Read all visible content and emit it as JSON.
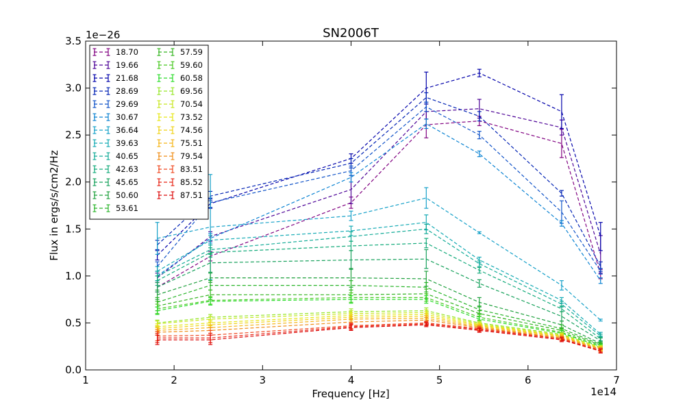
{
  "chart_data": {
    "type": "line",
    "title": "SN2006T",
    "xlabel": "Frequency [Hz]",
    "ylabel": "Flux in ergs/s/cm2/Hz",
    "x_multiplier": "1e14",
    "y_multiplier": "1e−26",
    "xlim": [
      1,
      7
    ],
    "ylim": [
      0,
      3.5
    ],
    "x_ticks": [
      "1",
      "2",
      "3",
      "4",
      "5",
      "6",
      "7"
    ],
    "y_ticks": [
      "0.0",
      "0.5",
      "1.0",
      "1.5",
      "2.0",
      "2.5",
      "3.0",
      "3.5"
    ],
    "grid": false,
    "legend_position": "top-left",
    "x": [
      1.81,
      2.41,
      4.0,
      4.85,
      5.45,
      6.38,
      6.82
    ],
    "series": [
      {
        "name": "18.70",
        "color": "#800080",
        "values": [
          0.88,
          1.21,
          1.78,
          2.61,
          2.65,
          2.41,
          1.02
        ],
        "errors": [
          0.05,
          0.05,
          0.06,
          0.14,
          0.05,
          0.15,
          0.05
        ]
      },
      {
        "name": "19.66",
        "color": "#4b0096",
        "values": [
          0.98,
          1.42,
          1.92,
          2.75,
          2.78,
          2.58,
          1.23
        ],
        "errors": [
          0.05,
          0.05,
          0.15,
          0.08,
          0.1,
          0.08,
          0.2
        ]
      },
      {
        "name": "21.68",
        "color": "#0000aa",
        "values": [
          1.22,
          1.77,
          2.25,
          3.0,
          3.16,
          2.75,
          1.42
        ],
        "errors": [
          0.05,
          0.05,
          0.05,
          0.17,
          0.04,
          0.18,
          0.15
        ]
      },
      {
        "name": "28.69",
        "color": "#0022b4",
        "values": [
          1.33,
          1.85,
          2.2,
          2.9,
          2.7,
          1.88,
          1.1
        ],
        "errors": [
          0.05,
          0.05,
          0.05,
          0.05,
          0.05,
          0.03,
          0.05
        ]
      },
      {
        "name": "29.69",
        "color": "#0f52c8",
        "values": [
          1.1,
          1.78,
          2.12,
          2.8,
          2.5,
          1.68,
          1.05
        ],
        "errors": [
          0.05,
          0.05,
          0.05,
          0.05,
          0.04,
          0.12,
          0.03
        ]
      },
      {
        "name": "30.67",
        "color": "#0a82d2",
        "values": [
          1.0,
          1.4,
          2.05,
          2.62,
          2.3,
          1.56,
          0.95
        ],
        "errors": [
          0.05,
          0.05,
          0.05,
          0.05,
          0.03,
          0.03,
          0.03
        ]
      },
      {
        "name": "36.64",
        "color": "#14a0c8",
        "values": [
          1.4,
          1.52,
          1.64,
          1.83,
          1.46,
          0.9,
          0.53
        ],
        "errors": [
          0.17,
          0.56,
          0.05,
          0.11,
          0.01,
          0.05,
          0.01
        ]
      },
      {
        "name": "39.63",
        "color": "#14aab4",
        "values": [
          1.05,
          1.38,
          1.48,
          1.57,
          1.17,
          0.74,
          0.38
        ],
        "errors": [
          0.05,
          0.05,
          0.05,
          0.08,
          0.03,
          0.03,
          0.02
        ]
      },
      {
        "name": "40.65",
        "color": "#10aa96",
        "values": [
          1.0,
          1.28,
          1.42,
          1.5,
          1.13,
          0.7,
          0.36
        ],
        "errors": [
          0.05,
          0.05,
          0.05,
          0.05,
          0.03,
          0.03,
          0.02
        ]
      },
      {
        "name": "42.63",
        "color": "#12aa7a",
        "values": [
          0.95,
          1.25,
          1.32,
          1.35,
          1.06,
          0.65,
          0.33
        ],
        "errors": [
          0.05,
          0.05,
          0.05,
          0.05,
          0.03,
          0.03,
          0.02
        ]
      },
      {
        "name": "45.65",
        "color": "#14a05a",
        "values": [
          0.88,
          1.14,
          1.17,
          1.18,
          0.92,
          0.57,
          0.31
        ],
        "errors": [
          0.05,
          0.1,
          0.1,
          0.1,
          0.04,
          0.05,
          0.03
        ]
      },
      {
        "name": "50.60",
        "color": "#1ea03c",
        "values": [
          0.8,
          0.98,
          0.98,
          0.97,
          0.72,
          0.48,
          0.28
        ],
        "errors": [
          0.05,
          0.05,
          0.1,
          0.08,
          0.05,
          0.04,
          0.02
        ]
      },
      {
        "name": "53.61",
        "color": "#28b428",
        "values": [
          0.72,
          0.9,
          0.9,
          0.88,
          0.64,
          0.44,
          0.27
        ],
        "errors": [
          0.05,
          0.05,
          0.05,
          0.05,
          0.04,
          0.04,
          0.02
        ]
      },
      {
        "name": "57.59",
        "color": "#32b41e",
        "values": [
          0.68,
          0.8,
          0.8,
          0.81,
          0.6,
          0.42,
          0.26
        ],
        "errors": [
          0.05,
          0.05,
          0.05,
          0.05,
          0.03,
          0.03,
          0.02
        ]
      },
      {
        "name": "59.60",
        "color": "#46c81e",
        "values": [
          0.65,
          0.74,
          0.77,
          0.77,
          0.56,
          0.4,
          0.25
        ],
        "errors": [
          0.05,
          0.04,
          0.05,
          0.04,
          0.03,
          0.03,
          0.02
        ]
      },
      {
        "name": "60.58",
        "color": "#28dc28",
        "values": [
          0.63,
          0.73,
          0.75,
          0.75,
          0.54,
          0.39,
          0.25
        ],
        "errors": [
          0.04,
          0.04,
          0.04,
          0.04,
          0.03,
          0.03,
          0.02
        ]
      },
      {
        "name": "69.56",
        "color": "#96e628",
        "values": [
          0.5,
          0.56,
          0.62,
          0.63,
          0.5,
          0.38,
          0.24
        ],
        "errors": [
          0.03,
          0.03,
          0.03,
          0.03,
          0.02,
          0.02,
          0.02
        ]
      },
      {
        "name": "70.54",
        "color": "#c8e61e",
        "values": [
          0.49,
          0.54,
          0.6,
          0.61,
          0.49,
          0.37,
          0.24
        ],
        "errors": [
          0.03,
          0.03,
          0.03,
          0.03,
          0.02,
          0.02,
          0.02
        ]
      },
      {
        "name": "73.52",
        "color": "#e6e614",
        "values": [
          0.46,
          0.5,
          0.58,
          0.59,
          0.48,
          0.36,
          0.23
        ],
        "errors": [
          0.03,
          0.03,
          0.03,
          0.03,
          0.02,
          0.02,
          0.02
        ]
      },
      {
        "name": "74.56",
        "color": "#f0d214",
        "values": [
          0.44,
          0.48,
          0.56,
          0.57,
          0.47,
          0.36,
          0.23
        ],
        "errors": [
          0.03,
          0.03,
          0.03,
          0.03,
          0.02,
          0.02,
          0.02
        ]
      },
      {
        "name": "75.51",
        "color": "#f5b414",
        "values": [
          0.42,
          0.45,
          0.54,
          0.55,
          0.46,
          0.35,
          0.22
        ],
        "errors": [
          0.03,
          0.03,
          0.03,
          0.03,
          0.02,
          0.02,
          0.02
        ]
      },
      {
        "name": "79.54",
        "color": "#f08c14",
        "values": [
          0.4,
          0.42,
          0.51,
          0.53,
          0.45,
          0.34,
          0.22
        ],
        "errors": [
          0.03,
          0.03,
          0.03,
          0.03,
          0.02,
          0.02,
          0.02
        ]
      },
      {
        "name": "83.51",
        "color": "#f0461e",
        "values": [
          0.36,
          0.37,
          0.47,
          0.5,
          0.44,
          0.33,
          0.21
        ],
        "errors": [
          0.05,
          0.05,
          0.03,
          0.02,
          0.02,
          0.02,
          0.02
        ]
      },
      {
        "name": "85.52",
        "color": "#e62314",
        "values": [
          0.34,
          0.34,
          0.46,
          0.49,
          0.43,
          0.33,
          0.2
        ],
        "errors": [
          0.05,
          0.05,
          0.03,
          0.02,
          0.02,
          0.02,
          0.02
        ]
      },
      {
        "name": "87.51",
        "color": "#dc0a0a",
        "values": [
          0.32,
          0.32,
          0.45,
          0.48,
          0.42,
          0.32,
          0.2
        ],
        "errors": [
          0.05,
          0.05,
          0.03,
          0.02,
          0.02,
          0.02,
          0.02
        ]
      }
    ]
  }
}
